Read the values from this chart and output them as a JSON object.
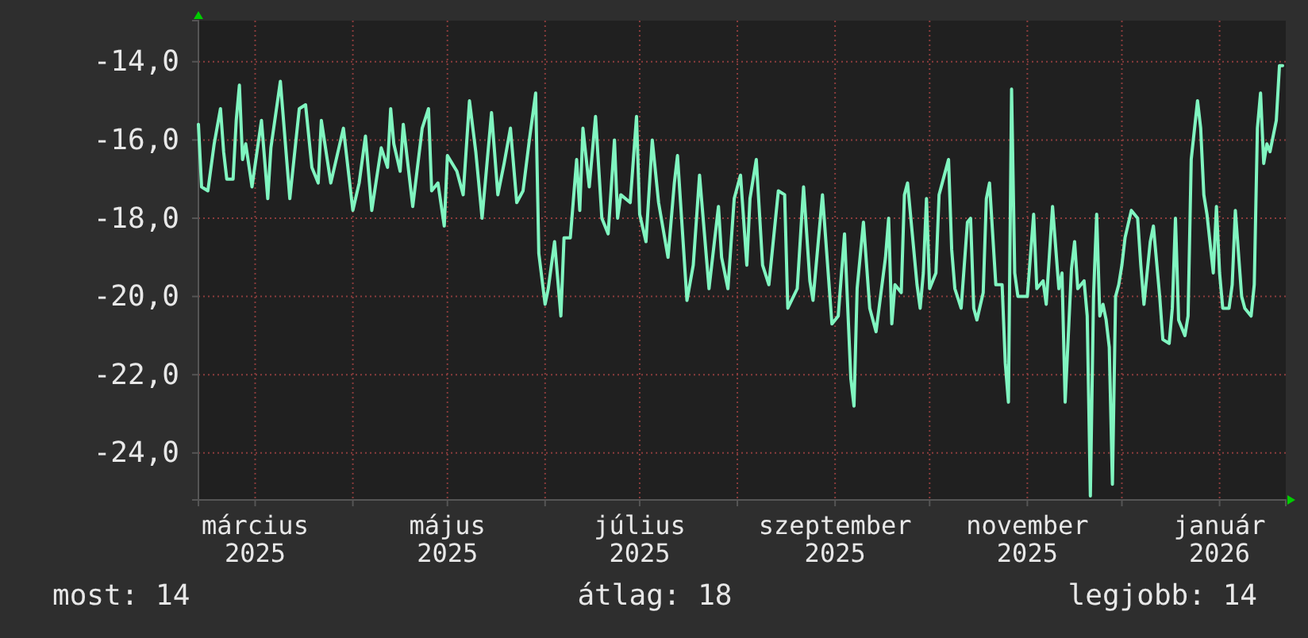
{
  "chart_data": {
    "type": "line",
    "x": [
      "2025-02-11",
      "2025-02-12",
      "2025-02-14",
      "2025-02-16",
      "2025-02-18",
      "2025-02-19",
      "2025-02-20",
      "2025-02-22",
      "2025-02-23",
      "2025-02-24",
      "2025-02-25",
      "2025-02-26",
      "2025-02-28",
      "2025-03-03",
      "2025-03-05",
      "2025-03-06",
      "2025-03-09",
      "2025-03-11",
      "2025-03-12",
      "2025-03-15",
      "2025-03-17",
      "2025-03-19",
      "2025-03-21",
      "2025-03-22",
      "2025-03-25",
      "2025-03-29",
      "2025-04-01",
      "2025-04-03",
      "2025-04-05",
      "2025-04-07",
      "2025-04-10",
      "2025-04-12",
      "2025-04-13",
      "2025-04-14",
      "2025-04-16",
      "2025-04-17",
      "2025-04-20",
      "2025-04-23",
      "2025-04-25",
      "2025-04-26",
      "2025-04-28",
      "2025-04-30",
      "2025-05-01",
      "2025-05-04",
      "2025-05-06",
      "2025-05-08",
      "2025-05-10",
      "2025-05-12",
      "2025-05-15",
      "2025-05-17",
      "2025-05-19",
      "2025-05-21",
      "2025-05-23",
      "2025-05-25",
      "2025-05-27",
      "2025-05-29",
      "2025-05-30",
      "2025-06-01",
      "2025-06-02",
      "2025-06-04",
      "2025-06-06",
      "2025-06-07",
      "2025-06-09",
      "2025-06-10",
      "2025-06-11",
      "2025-06-12",
      "2025-06-13",
      "2025-06-15",
      "2025-06-17",
      "2025-06-19",
      "2025-06-21",
      "2025-06-23",
      "2025-06-24",
      "2025-06-25",
      "2025-06-28",
      "2025-06-30",
      "2025-07-01",
      "2025-07-03",
      "2025-07-05",
      "2025-07-07",
      "2025-07-10",
      "2025-07-12",
      "2025-07-13",
      "2025-07-16",
      "2025-07-18",
      "2025-07-20",
      "2025-07-23",
      "2025-07-26",
      "2025-07-27",
      "2025-07-29",
      "2025-07-31",
      "2025-08-02",
      "2025-08-04",
      "2025-08-05",
      "2025-08-07",
      "2025-08-09",
      "2025-08-11",
      "2025-08-14",
      "2025-08-16",
      "2025-08-17",
      "2025-08-20",
      "2025-08-22",
      "2025-08-24",
      "2025-08-25",
      "2025-08-28",
      "2025-08-31",
      "2025-09-02",
      "2025-09-04",
      "2025-09-06",
      "2025-09-07",
      "2025-09-08",
      "2025-09-10",
      "2025-09-12",
      "2025-09-14",
      "2025-09-17",
      "2025-09-18",
      "2025-09-19",
      "2025-09-20",
      "2025-09-22",
      "2025-09-23",
      "2025-09-24",
      "2025-09-27",
      "2025-09-28",
      "2025-09-29",
      "2025-09-30",
      "2025-10-01",
      "2025-10-03",
      "2025-10-04",
      "2025-10-05",
      "2025-10-07",
      "2025-10-08",
      "2025-10-09",
      "2025-10-11",
      "2025-10-13",
      "2025-10-14",
      "2025-10-15",
      "2025-10-16",
      "2025-10-18",
      "2025-10-19",
      "2025-10-20",
      "2025-10-22",
      "2025-10-24",
      "2025-10-25",
      "2025-10-26",
      "2025-10-27",
      "2025-10-28",
      "2025-10-29",
      "2025-11-01",
      "2025-11-03",
      "2025-11-04",
      "2025-11-06",
      "2025-11-07",
      "2025-11-09",
      "2025-11-11",
      "2025-11-12",
      "2025-11-13",
      "2025-11-15",
      "2025-11-16",
      "2025-11-17",
      "2025-11-19",
      "2025-11-20",
      "2025-11-21",
      "2025-11-22",
      "2025-11-23",
      "2025-11-24",
      "2025-11-25",
      "2025-11-26",
      "2025-11-27",
      "2025-11-28",
      "2025-11-29",
      "2025-11-30",
      "2025-12-01",
      "2025-12-02",
      "2025-12-04",
      "2025-12-06",
      "2025-12-07",
      "2025-12-08",
      "2025-12-10",
      "2025-12-11",
      "2025-12-13",
      "2025-12-14",
      "2025-12-16",
      "2025-12-17",
      "2025-12-18",
      "2025-12-19",
      "2025-12-21",
      "2025-12-22",
      "2025-12-23",
      "2025-12-25",
      "2025-12-26",
      "2025-12-27",
      "2025-12-28",
      "2025-12-30",
      "2025-12-31",
      "2026-01-01",
      "2026-01-02",
      "2026-01-04",
      "2026-01-05",
      "2026-01-06",
      "2026-01-08",
      "2026-01-09",
      "2026-01-11",
      "2026-01-12",
      "2026-01-13",
      "2026-01-14",
      "2026-01-15",
      "2026-01-16",
      "2026-01-17",
      "2026-01-19",
      "2026-01-20",
      "2026-01-21"
    ],
    "series": [
      {
        "color": "#80f5c0",
        "values": [
          -15.6,
          -17.2,
          -17.3,
          -16.1,
          -15.2,
          -16.3,
          -17.0,
          -17.0,
          -15.5,
          -14.6,
          -16.5,
          -16.1,
          -17.2,
          -15.5,
          -17.5,
          -16.2,
          -14.5,
          -16.5,
          -17.5,
          -15.2,
          -15.1,
          -16.7,
          -17.1,
          -15.5,
          -17.1,
          -15.7,
          -17.8,
          -17.1,
          -15.9,
          -17.8,
          -16.2,
          -16.7,
          -15.2,
          -16.1,
          -16.8,
          -15.6,
          -17.7,
          -15.7,
          -15.2,
          -17.3,
          -17.1,
          -18.2,
          -16.4,
          -16.8,
          -17.4,
          -15.0,
          -16.3,
          -18.0,
          -15.3,
          -17.4,
          -16.6,
          -15.7,
          -17.6,
          -17.3,
          -16.0,
          -14.8,
          -18.9,
          -20.2,
          -19.8,
          -18.6,
          -20.5,
          -18.5,
          -18.5,
          -17.5,
          -16.5,
          -17.8,
          -15.7,
          -17.2,
          -15.4,
          -18.0,
          -18.4,
          -16.0,
          -18.0,
          -17.4,
          -17.6,
          -15.4,
          -17.9,
          -18.6,
          -16.0,
          -17.6,
          -19.0,
          -17.1,
          -16.4,
          -20.1,
          -19.2,
          -16.9,
          -19.8,
          -17.7,
          -19.0,
          -19.8,
          -17.5,
          -16.9,
          -19.2,
          -17.5,
          -16.5,
          -19.2,
          -19.7,
          -17.3,
          -17.4,
          -20.3,
          -19.8,
          -17.2,
          -19.6,
          -20.1,
          -17.4,
          -20.7,
          -20.5,
          -18.4,
          -22.1,
          -22.8,
          -19.8,
          -18.1,
          -20.3,
          -20.9,
          -19.0,
          -18.0,
          -20.7,
          -19.7,
          -19.9,
          -17.4,
          -17.1,
          -19.7,
          -20.3,
          -19.4,
          -17.5,
          -19.8,
          -19.4,
          -17.4,
          -17.1,
          -16.5,
          -18.8,
          -19.8,
          -20.3,
          -18.1,
          -18.0,
          -20.3,
          -20.6,
          -19.9,
          -17.5,
          -17.1,
          -19.7,
          -19.7,
          -21.7,
          -22.7,
          -14.7,
          -19.4,
          -20.0,
          -20.0,
          -17.9,
          -19.8,
          -19.6,
          -20.2,
          -17.7,
          -19.8,
          -19.4,
          -22.7,
          -19.3,
          -18.6,
          -19.8,
          -19.6,
          -20.5,
          -25.1,
          -20.0,
          -17.9,
          -20.5,
          -20.2,
          -20.6,
          -21.3,
          -24.8,
          -20.0,
          -19.7,
          -19.2,
          -18.5,
          -17.8,
          -18.0,
          -19.2,
          -20.2,
          -18.6,
          -18.2,
          -20.0,
          -21.1,
          -21.2,
          -20.3,
          -18.0,
          -20.6,
          -21.0,
          -20.5,
          -16.5,
          -15.0,
          -15.7,
          -17.4,
          -17.9,
          -19.4,
          -17.7,
          -19.4,
          -20.3,
          -20.3,
          -19.7,
          -17.8,
          -20.0,
          -20.3,
          -20.5,
          -19.7,
          -15.7,
          -14.8,
          -16.6,
          -16.1,
          -16.3,
          -15.5,
          -14.1,
          -14.1
        ]
      }
    ],
    "xlim": [
      "2025-02-11",
      "2026-01-22"
    ],
    "xticks": [
      {
        "value": "2025-03-01",
        "label": "március 2025"
      },
      {
        "value": "2025-04-01",
        "label": null
      },
      {
        "value": "2025-05-01",
        "label": "május 2025"
      },
      {
        "value": "2025-06-01",
        "label": null
      },
      {
        "value": "2025-07-01",
        "label": "július 2025"
      },
      {
        "value": "2025-08-01",
        "label": null
      },
      {
        "value": "2025-09-01",
        "label": "szeptember 2025"
      },
      {
        "value": "2025-10-01",
        "label": null
      },
      {
        "value": "2025-11-01",
        "label": "november 2025"
      },
      {
        "value": "2025-12-01",
        "label": null
      },
      {
        "value": "2026-01-01",
        "label": "január 2026"
      }
    ],
    "ylim": [
      -25.2,
      -12.95
    ],
    "yticks": [
      {
        "value": -14,
        "label": "-14,0"
      },
      {
        "value": -16,
        "label": "-16,0"
      },
      {
        "value": -18,
        "label": "-18,0"
      },
      {
        "value": -20,
        "label": "-20,0"
      },
      {
        "value": -22,
        "label": "-22,0"
      },
      {
        "value": -24,
        "label": "-24,0"
      }
    ],
    "grid": true,
    "annotations": [
      "most: 14",
      "átlag: 18",
      "legjobb: 14"
    ]
  }
}
